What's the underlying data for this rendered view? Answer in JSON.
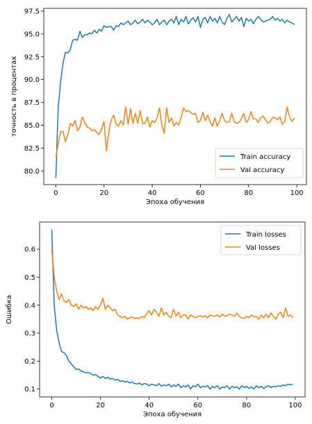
{
  "colors": {
    "train": "#1f77b4",
    "val": "#ff7f0e"
  },
  "chart_data": [
    {
      "type": "line",
      "xlabel": "Эпоха обучения",
      "ylabel": "точность в процентах",
      "xlim": [
        -5,
        104
      ],
      "ylim": [
        78.5,
        97.8
      ],
      "xticks": [
        0,
        20,
        40,
        60,
        80,
        100
      ],
      "yticks": [
        80.0,
        82.5,
        85.0,
        87.5,
        90.0,
        92.5,
        95.0,
        97.5
      ],
      "legend_position": "lower-right",
      "series": [
        {
          "name": "Train accuracy",
          "values": [
            79.2,
            87.0,
            89.8,
            91.8,
            93.0,
            92.9,
            93.3,
            94.3,
            94.4,
            94.3,
            95.3,
            94.6,
            94.9,
            94.9,
            95.1,
            95.0,
            95.4,
            95.1,
            95.5,
            95.3,
            95.9,
            95.7,
            95.8,
            95.8,
            95.4,
            95.9,
            95.8,
            96.2,
            96.0,
            96.2,
            96.4,
            96.0,
            96.2,
            96.5,
            96.1,
            96.3,
            96.6,
            96.2,
            96.5,
            96.3,
            96.0,
            96.2,
            96.6,
            96.0,
            96.3,
            96.5,
            96.0,
            96.4,
            96.6,
            96.2,
            96.9,
            96.0,
            96.6,
            96.3,
            96.9,
            96.1,
            96.5,
            96.8,
            96.3,
            96.9,
            95.7,
            96.6,
            96.8,
            96.2,
            96.9,
            96.4,
            96.7,
            96.2,
            96.9,
            96.3,
            96.0,
            96.7,
            97.1,
            96.3,
            96.6,
            96.9,
            96.4,
            96.8,
            95.8,
            96.7,
            96.4,
            96.6,
            96.1,
            96.6,
            96.9,
            96.6,
            96.3,
            96.4,
            96.5,
            96.6,
            96.9,
            96.5,
            96.7,
            96.4,
            96.6,
            96.2,
            96.5,
            96.3,
            96.2,
            96.0
          ]
        },
        {
          "name": "Val accuracy",
          "values": [
            81.5,
            83.0,
            84.3,
            84.3,
            83.2,
            84.0,
            85.2,
            84.9,
            85.5,
            84.4,
            84.8,
            85.9,
            85.3,
            84.8,
            84.7,
            84.4,
            84.5,
            84.2,
            84.0,
            84.6,
            85.4,
            82.2,
            84.3,
            85.6,
            86.1,
            85.1,
            84.9,
            85.5,
            85.0,
            87.0,
            85.1,
            86.8,
            85.2,
            86.3,
            85.2,
            86.6,
            85.2,
            85.2,
            85.9,
            84.8,
            85.5,
            85.3,
            85.8,
            86.9,
            85.0,
            84.1,
            86.9,
            85.3,
            85.8,
            84.9,
            85.3,
            85.0,
            85.9,
            86.9,
            86.5,
            86.6,
            86.4,
            86.2,
            86.3,
            85.3,
            85.5,
            86.4,
            85.5,
            86.1,
            85.4,
            84.9,
            85.8,
            84.9,
            85.5,
            86.3,
            85.5,
            85.3,
            85.4,
            86.3,
            85.4,
            85.2,
            85.3,
            85.7,
            86.3,
            85.3,
            85.6,
            86.5,
            85.7,
            85.7,
            85.3,
            85.8,
            86.0,
            85.6,
            85.2,
            85.4,
            85.9,
            85.8,
            85.6,
            85.9,
            85.1,
            85.4,
            87.0,
            85.9,
            85.4,
            85.8
          ]
        }
      ]
    },
    {
      "type": "line",
      "xlabel": "Эпоха обучения",
      "ylabel": "Ошибка",
      "xlim": [
        -5,
        104
      ],
      "ylim": [
        0.072,
        0.697
      ],
      "xticks": [
        0,
        20,
        40,
        60,
        80,
        100
      ],
      "yticks": [
        0.1,
        0.2,
        0.3,
        0.4,
        0.5,
        0.6
      ],
      "legend_position": "upper-right",
      "series": [
        {
          "name": "Train losses",
          "values": [
            0.67,
            0.4,
            0.31,
            0.265,
            0.235,
            0.23,
            0.22,
            0.2,
            0.19,
            0.18,
            0.17,
            0.172,
            0.165,
            0.162,
            0.158,
            0.16,
            0.155,
            0.15,
            0.152,
            0.145,
            0.14,
            0.145,
            0.138,
            0.142,
            0.136,
            0.138,
            0.132,
            0.135,
            0.128,
            0.13,
            0.125,
            0.128,
            0.122,
            0.125,
            0.12,
            0.118,
            0.122,
            0.115,
            0.12,
            0.118,
            0.112,
            0.118,
            0.115,
            0.112,
            0.12,
            0.11,
            0.115,
            0.112,
            0.118,
            0.108,
            0.115,
            0.11,
            0.118,
            0.105,
            0.112,
            0.108,
            0.115,
            0.1,
            0.112,
            0.108,
            0.118,
            0.105,
            0.11,
            0.108,
            0.112,
            0.1,
            0.11,
            0.105,
            0.112,
            0.1,
            0.108,
            0.105,
            0.112,
            0.1,
            0.11,
            0.105,
            0.108,
            0.1,
            0.112,
            0.105,
            0.11,
            0.102,
            0.108,
            0.1,
            0.112,
            0.105,
            0.11,
            0.102,
            0.108,
            0.112,
            0.105,
            0.11,
            0.108,
            0.112,
            0.11,
            0.115,
            0.112,
            0.118,
            0.115,
            0.118
          ]
        },
        {
          "name": "Val losses",
          "values": [
            0.6,
            0.5,
            0.45,
            0.42,
            0.44,
            0.415,
            0.41,
            0.42,
            0.4,
            0.395,
            0.405,
            0.385,
            0.4,
            0.39,
            0.395,
            0.385,
            0.39,
            0.38,
            0.395,
            0.385,
            0.4,
            0.425,
            0.385,
            0.4,
            0.39,
            0.38,
            0.385,
            0.365,
            0.36,
            0.355,
            0.36,
            0.35,
            0.355,
            0.358,
            0.352,
            0.355,
            0.352,
            0.36,
            0.355,
            0.37,
            0.38,
            0.365,
            0.385,
            0.375,
            0.36,
            0.39,
            0.365,
            0.375,
            0.36,
            0.355,
            0.385,
            0.36,
            0.375,
            0.355,
            0.365,
            0.365,
            0.35,
            0.365,
            0.36,
            0.355,
            0.36,
            0.362,
            0.358,
            0.362,
            0.355,
            0.365,
            0.362,
            0.36,
            0.365,
            0.358,
            0.368,
            0.36,
            0.362,
            0.368,
            0.365,
            0.36,
            0.372,
            0.36,
            0.355,
            0.352,
            0.36,
            0.355,
            0.365,
            0.358,
            0.36,
            0.35,
            0.365,
            0.355,
            0.368,
            0.355,
            0.372,
            0.36,
            0.35,
            0.368,
            0.375,
            0.355,
            0.39,
            0.36,
            0.365,
            0.355
          ]
        }
      ]
    }
  ]
}
